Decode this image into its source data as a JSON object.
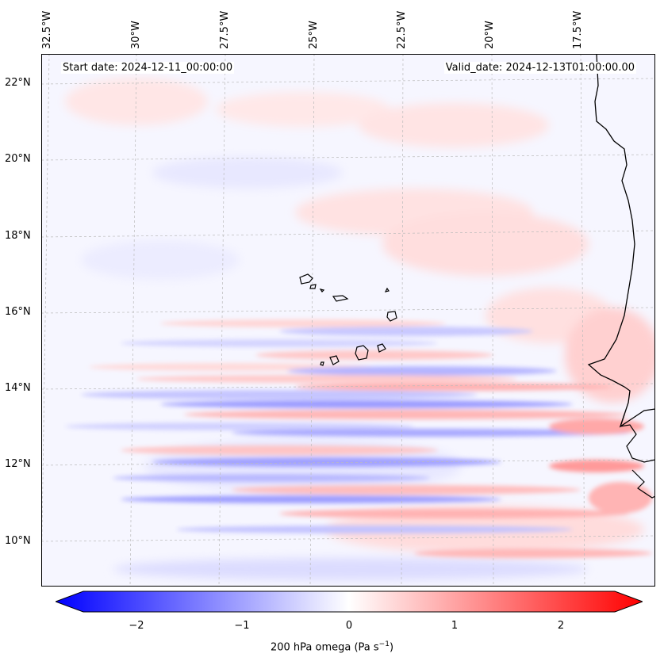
{
  "header": {
    "start_date": "Start date: 2024-12-11_00:00:00",
    "valid_date": "Valid_date: 2024-12-13T01:00:00.00"
  },
  "map": {
    "lon_labels": [
      "32.5°W",
      "30°W",
      "27.5°W",
      "25°W",
      "22.5°W",
      "20°W",
      "17.5°W"
    ],
    "lat_labels": [
      "22°N",
      "20°N",
      "18°N",
      "16°N",
      "14°N",
      "12°N",
      "10°N"
    ],
    "colors": {
      "negative": "#0000ff",
      "neutral": "#ffffff",
      "positive": "#ff0000",
      "coast": "#000000",
      "grid": "#bbbbbb"
    }
  },
  "colorbar": {
    "ticks": [
      "−2",
      "−1",
      "0",
      "1",
      "2"
    ],
    "label_prefix": "200 hPa omega (Pa s",
    "label_exp": "−1",
    "label_suffix": ")"
  }
}
